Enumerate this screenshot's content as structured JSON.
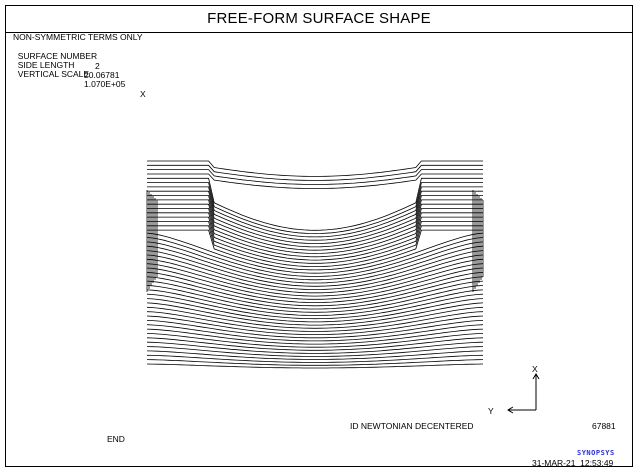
{
  "title": "FREE-FORM SURFACE SHAPE",
  "info": {
    "terms": "NON-SYMMETRIC TERMS ONLY",
    "surface_label": "SURFACE NUMBER",
    "surface_value": "2",
    "side_label": "SIDE LENGTH",
    "side_value": "20.06781",
    "scale_label": "VERTICAL SCALE",
    "scale_value": "1.070E+05",
    "scale_axis": "X"
  },
  "axes": {
    "x_label": "X",
    "y_label": "Y"
  },
  "footer": {
    "description": "ID NEWTONIAN DECENTERED",
    "code": "67881",
    "end": "END",
    "brand": "SYNOPSYS",
    "datetime": "31-MAR-21  12:53:49"
  },
  "colors": {
    "line": "#000000",
    "brand": "#2b2bff"
  }
}
